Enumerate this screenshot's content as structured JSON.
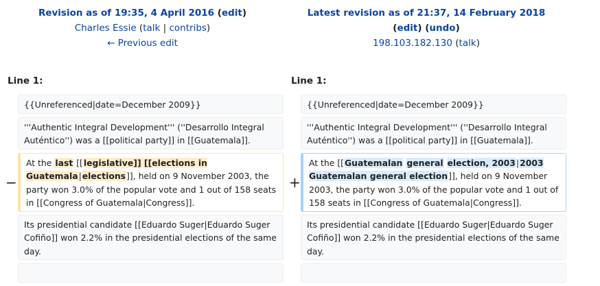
{
  "old_revision": {
    "title": "Revision as of 19:35, 4 April 2016",
    "edit_link": "edit",
    "user": "Charles Essie",
    "talk_link": "talk",
    "contribs_link": "contribs",
    "previous_edit": "← Previous edit"
  },
  "new_revision": {
    "title": "Latest revision as of 21:37, 14 February 2018",
    "edit_link": "edit",
    "undo_link": "undo",
    "user": "198.103.182.130",
    "talk_link": "talk"
  },
  "line_label_left": "Line 1:",
  "line_label_right": "Line 1:",
  "markers": {
    "minus": "−",
    "plus": "+"
  },
  "rows": {
    "unreferenced": "{{Unreferenced|date=December 2009}}",
    "intro": "'''Authentic Integral Development''' (''Desarrollo Integral Auténtico'') was a [[political party]] in [[Guatemala]].",
    "presidential": "Its presidential candidate [[Eduardo Suger|Eduardo Suger Cofiño]] won 2.2% in the presidential elections of the same day.",
    "old_changed": {
      "t1": "At the ",
      "d1": "last",
      "t2": " [[",
      "d2": "legislative]] [[elections in Guatemala",
      "t3": "|",
      "d3": "elections",
      "t4": "]], held on 9 November 2003, the party won 3.0% of the popular vote and 1 out of 158 seats in [[Congress of Guatemala|Congress]]."
    },
    "new_changed": {
      "t1": "At the [[",
      "a1": "Guatemalan",
      "s1": " ",
      "a2": "general",
      "s2": " ",
      "a3": "election, 2003",
      "t2": "|",
      "a4": "2003 Guatemalan general election",
      "t3": "]], held on 9 November 2003, the party won 3.0% of the popular vote and 1 out of 158 seats in [[Congress of Guatemala|Congress]]."
    }
  }
}
